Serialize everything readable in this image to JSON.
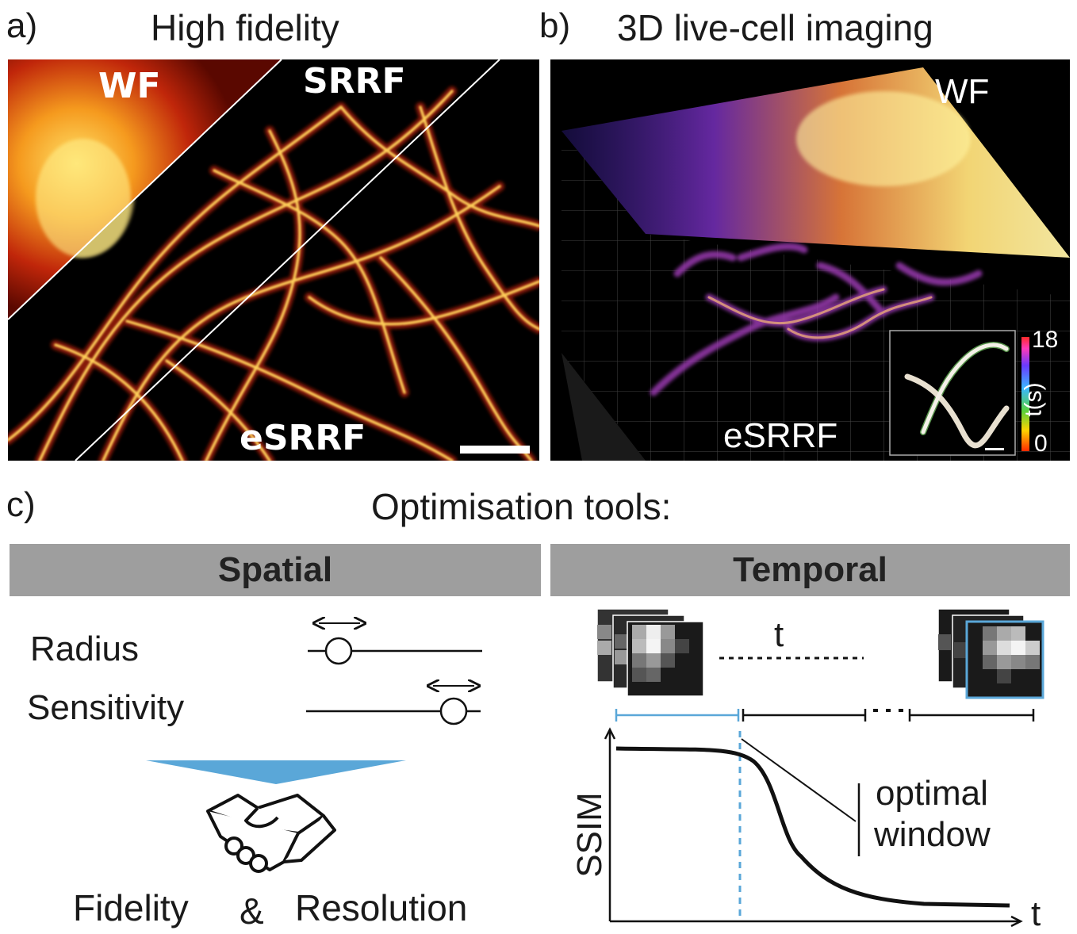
{
  "panel_a": {
    "label": "a)",
    "title": "High fidelity",
    "regions": [
      "WF",
      "SRRF",
      "eSRRF"
    ]
  },
  "panel_b": {
    "label": "b)",
    "title": "3D live-cell imaging",
    "top_label": "WF",
    "bottom_label": "eSRRF",
    "colorbar": {
      "max": "18",
      "min": "0",
      "unit": "t(s)"
    }
  },
  "panel_c": {
    "label": "c)",
    "title": "Optimisation tools:",
    "spatial": {
      "header": "Spatial",
      "params": [
        {
          "name": "Radius",
          "position": 0.18
        },
        {
          "name": "Sensitivity",
          "position": 0.85
        }
      ],
      "outcome_left": "Fidelity",
      "outcome_amp": "&",
      "outcome_right": "Resolution",
      "accent": "#5aa7d8"
    },
    "temporal": {
      "header": "Temporal",
      "frame_axis": "t",
      "plot_ylabel": "SSIM",
      "plot_xlabel": "t",
      "annotation_line1": "optimal",
      "annotation_line2": "window",
      "accent": "#5aa7d8"
    }
  }
}
